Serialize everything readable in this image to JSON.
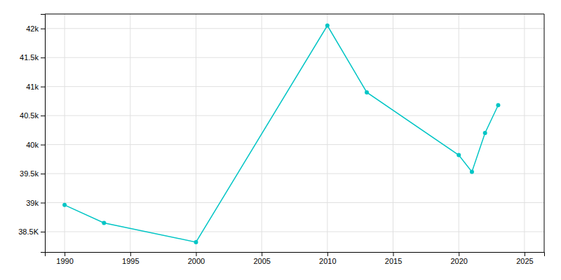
{
  "chart_data": {
    "type": "line",
    "x": [
      1990,
      1993,
      2000,
      2010,
      2013,
      2020,
      2021,
      2022,
      2023
    ],
    "values": [
      38960,
      38650,
      38320,
      42050,
      40900,
      39820,
      39530,
      40200,
      40680
    ],
    "color": "#00C5C5",
    "marker": "circle",
    "xlim": [
      1988.5,
      2026.5
    ],
    "ylim": [
      38150,
      42250
    ],
    "xticks": [
      1990,
      1995,
      2000,
      2005,
      2010,
      2015,
      2020,
      2025
    ],
    "yticks": [
      {
        "value": 38500,
        "label": "38.5K"
      },
      {
        "value": 39000,
        "label": "39k"
      },
      {
        "value": 39500,
        "label": "39.5k"
      },
      {
        "value": 40000,
        "label": "40k"
      },
      {
        "value": 40500,
        "label": "40.5k"
      },
      {
        "value": 41000,
        "label": "41k"
      },
      {
        "value": 41500,
        "label": "41.5k"
      },
      {
        "value": 42000,
        "label": "42k"
      }
    ],
    "grid": true
  }
}
